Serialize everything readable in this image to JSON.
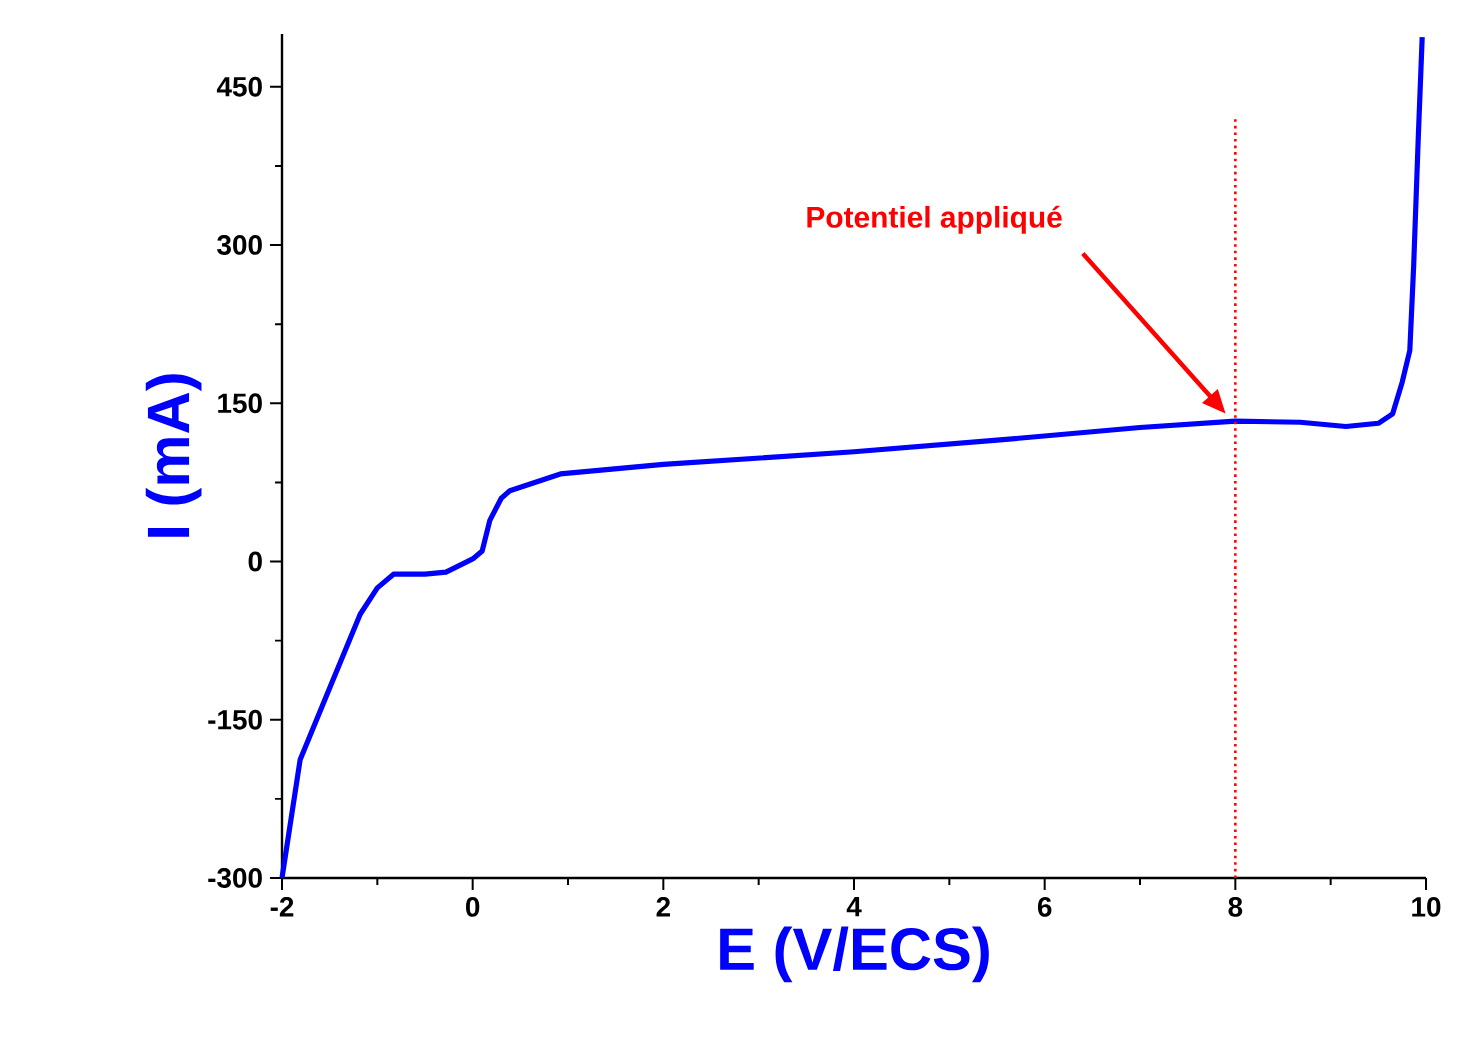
{
  "chart_data": {
    "type": "line",
    "xlabel": "E (V/ECS)",
    "ylabel": "I (mA)",
    "xlim": [
      -2,
      10
    ],
    "ylim": [
      -300,
      500
    ],
    "xticks": [
      -2,
      0,
      2,
      4,
      6,
      8,
      10
    ],
    "yticks": [
      -300,
      -150,
      0,
      150,
      300,
      450
    ],
    "grid": false,
    "marker": "none",
    "line_style": "solid",
    "ref_lines": [
      {
        "axis": "x",
        "value": 8,
        "color": "#ff0000",
        "line_style": "dotted"
      }
    ],
    "annotations": [
      "Potentiel appliqué"
    ],
    "series": [
      {
        "color": "#0000ff",
        "x": [
          -2,
          -1.81,
          -1.5,
          -1.18,
          -1,
          -0.83,
          -0.5,
          -0.28,
          -0.1,
          0.01,
          0.1,
          0.18,
          0.3,
          0.39,
          0.92,
          2,
          4,
          5.5,
          7,
          8,
          8.68,
          9.16,
          9.5,
          9.65,
          9.75,
          9.83,
          9.87,
          9.92,
          9.96
        ],
        "values": [
          -300,
          -188,
          -120,
          -50,
          -25,
          -12,
          -12,
          -10,
          -2,
          3,
          10,
          39,
          60,
          67,
          83,
          92,
          104,
          115,
          127,
          133,
          132,
          128,
          131,
          140,
          170,
          200,
          279,
          405,
          497
        ]
      }
    ]
  }
}
